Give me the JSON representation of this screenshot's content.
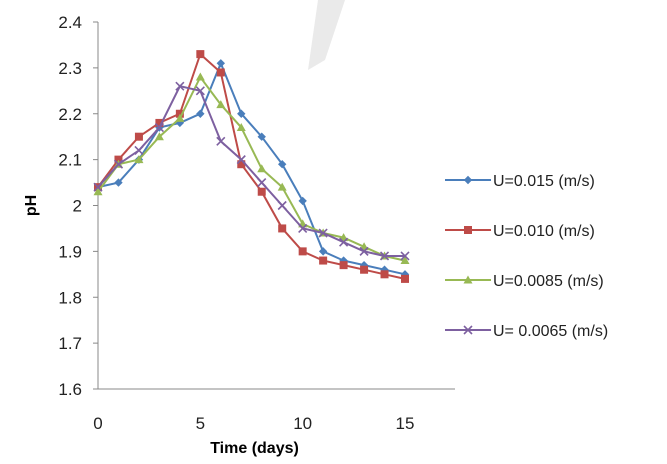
{
  "chart_data": {
    "type": "line",
    "title": "",
    "xlabel": "Time (days)",
    "ylabel": "pH",
    "xlim": [
      0,
      15
    ],
    "ylim": [
      1.6,
      2.4
    ],
    "x_ticks": [
      "0",
      "5",
      "10",
      "15"
    ],
    "y_ticks": [
      "1.6",
      "1.7",
      "1.8",
      "1.9",
      "2",
      "2.1",
      "2.2",
      "2.3",
      "2.4"
    ],
    "grid": false,
    "legend_position": "right",
    "x": [
      0,
      1,
      2,
      3,
      4,
      5,
      6,
      7,
      8,
      9,
      10,
      11,
      12,
      13,
      14,
      15
    ],
    "series": [
      {
        "name": "U=0.015 (m/s)",
        "color": "#4a7ebb",
        "marker": "diamond",
        "values": [
          2.04,
          2.05,
          2.1,
          2.17,
          2.18,
          2.2,
          2.31,
          2.2,
          2.15,
          2.09,
          2.01,
          1.9,
          1.88,
          1.87,
          1.86,
          1.85
        ]
      },
      {
        "name": "U=0.010 (m/s)",
        "color": "#be4b48",
        "marker": "square",
        "values": [
          2.04,
          2.1,
          2.15,
          2.18,
          2.2,
          2.33,
          2.29,
          2.09,
          2.03,
          1.95,
          1.9,
          1.88,
          1.87,
          1.86,
          1.85,
          1.84
        ]
      },
      {
        "name": "U=0.0085 (m/s)",
        "color": "#98b954",
        "marker": "triangle",
        "values": [
          2.03,
          2.09,
          2.1,
          2.15,
          2.19,
          2.28,
          2.22,
          2.17,
          2.08,
          2.04,
          1.96,
          1.94,
          1.93,
          1.91,
          1.89,
          1.88
        ]
      },
      {
        "name": "U= 0.0065 (m/s)",
        "color": "#7d60a0",
        "marker": "x",
        "values": [
          2.04,
          2.09,
          2.12,
          2.17,
          2.26,
          2.25,
          2.14,
          2.1,
          2.05,
          2.0,
          1.95,
          1.94,
          1.92,
          1.9,
          1.89,
          1.89
        ]
      }
    ]
  }
}
